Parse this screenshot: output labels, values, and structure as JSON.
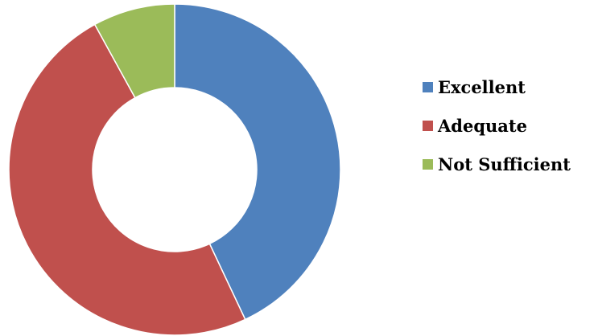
{
  "chart_data": {
    "type": "pie",
    "variant": "donut",
    "categories": [
      "Excellent",
      "Adequate",
      "Not Sufficient"
    ],
    "values": [
      43,
      49,
      8
    ],
    "colors": [
      "#4F81BD",
      "#C0504D",
      "#9BBB59"
    ],
    "legend_position": "right"
  }
}
